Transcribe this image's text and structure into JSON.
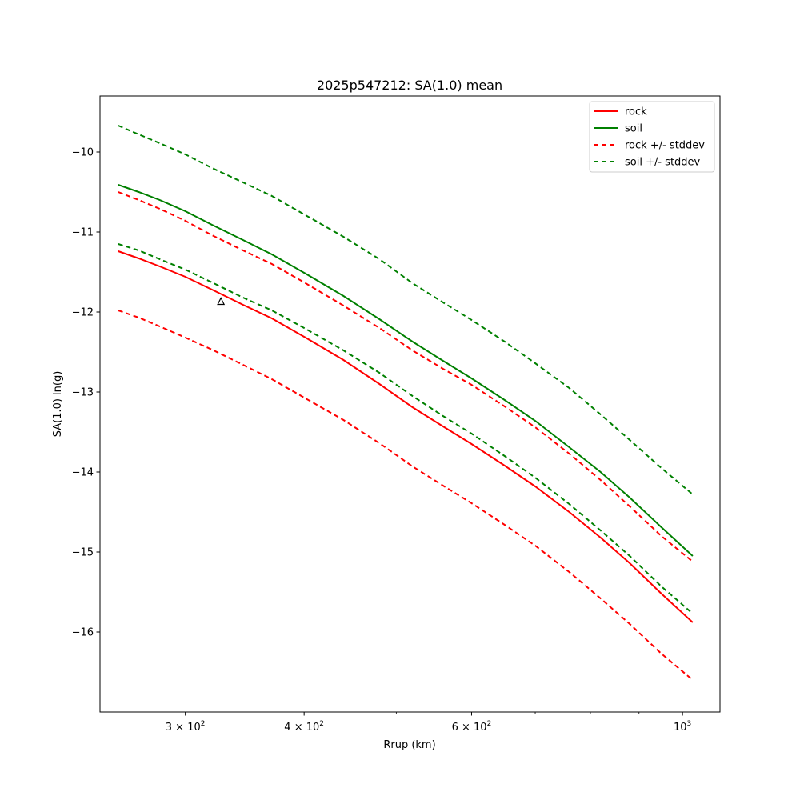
{
  "chart_data": {
    "type": "line",
    "title": "2025p547212: SA(1.0) mean",
    "xlabel": "Rrup (km)",
    "ylabel": "SA(1.0) ln(g)",
    "xscale": "log",
    "xlim": [
      244,
      1095
    ],
    "ylim": [
      -17.0,
      -9.3
    ],
    "grid": false,
    "legend_placement": "top-right",
    "x_ticks": [
      {
        "value": 300,
        "base": "3 × 10",
        "exp": "2"
      },
      {
        "value": 400,
        "base": "4 × 10",
        "exp": "2"
      },
      {
        "value": 600,
        "base": "6 × 10",
        "exp": "2"
      },
      {
        "value": 1000,
        "base": "10",
        "exp": "3"
      }
    ],
    "x_minor_ticks": [
      500,
      700,
      800,
      900
    ],
    "y_ticks": [
      {
        "value": -10,
        "label": "−10"
      },
      {
        "value": -11,
        "label": "−11"
      },
      {
        "value": -12,
        "label": "−12"
      },
      {
        "value": -13,
        "label": "−13"
      },
      {
        "value": -14,
        "label": "−14"
      },
      {
        "value": -15,
        "label": "−15"
      },
      {
        "value": -16,
        "label": "−16"
      }
    ],
    "x": [
      255,
      268,
      282,
      300,
      320,
      345,
      370,
      400,
      440,
      480,
      520,
      560,
      600,
      650,
      700,
      760,
      820,
      880,
      950,
      1025
    ],
    "series": [
      {
        "name": "rock",
        "color": "#ff0000",
        "dash": "solid",
        "values": [
          -11.24,
          -11.33,
          -11.43,
          -11.56,
          -11.72,
          -11.91,
          -12.08,
          -12.31,
          -12.6,
          -12.9,
          -13.19,
          -13.43,
          -13.65,
          -13.92,
          -14.18,
          -14.5,
          -14.82,
          -15.14,
          -15.52,
          -15.88
        ]
      },
      {
        "name": "soil",
        "color": "#008000",
        "dash": "solid",
        "values": [
          -10.41,
          -10.5,
          -10.6,
          -10.74,
          -10.91,
          -11.1,
          -11.28,
          -11.51,
          -11.8,
          -12.09,
          -12.37,
          -12.61,
          -12.83,
          -13.1,
          -13.36,
          -13.69,
          -14.0,
          -14.32,
          -14.69,
          -15.05
        ]
      },
      {
        "name": "rock +/- stddev",
        "color": "#ff0000",
        "dash": "dashed",
        "values": [
          -10.5,
          -10.6,
          -10.71,
          -10.86,
          -11.04,
          -11.23,
          -11.4,
          -11.63,
          -11.92,
          -12.2,
          -12.48,
          -12.71,
          -12.91,
          -13.18,
          -13.44,
          -13.77,
          -14.1,
          -14.43,
          -14.8,
          -15.12
        ]
      },
      {
        "name": "",
        "color": "#ff0000",
        "dash": "dashed",
        "values": [
          -11.98,
          -12.07,
          -12.18,
          -12.32,
          -12.47,
          -12.66,
          -12.84,
          -13.07,
          -13.35,
          -13.64,
          -13.93,
          -14.17,
          -14.39,
          -14.66,
          -14.92,
          -15.25,
          -15.58,
          -15.9,
          -16.27,
          -16.6
        ]
      },
      {
        "name": "soil +/- stddev",
        "color": "#008000",
        "dash": "dashed",
        "values": [
          -9.67,
          -9.78,
          -9.89,
          -10.03,
          -10.2,
          -10.38,
          -10.55,
          -10.78,
          -11.06,
          -11.34,
          -11.64,
          -11.88,
          -12.1,
          -12.37,
          -12.64,
          -12.95,
          -13.28,
          -13.6,
          -13.95,
          -14.28
        ]
      },
      {
        "name": "",
        "color": "#008000",
        "dash": "dashed",
        "values": [
          -11.15,
          -11.23,
          -11.34,
          -11.47,
          -11.63,
          -11.82,
          -11.98,
          -12.2,
          -12.48,
          -12.76,
          -13.05,
          -13.3,
          -13.52,
          -13.8,
          -14.07,
          -14.4,
          -14.73,
          -15.05,
          -15.43,
          -15.77
        ]
      }
    ],
    "observation": {
      "marker": "triangle-outline",
      "color": "#000000",
      "x": 327,
      "y": -11.87
    },
    "legend": [
      {
        "label": "rock",
        "color": "#ff0000",
        "dash": "solid"
      },
      {
        "label": "soil",
        "color": "#008000",
        "dash": "solid"
      },
      {
        "label": "rock +/- stddev",
        "color": "#ff0000",
        "dash": "dashed"
      },
      {
        "label": "soil +/- stddev",
        "color": "#008000",
        "dash": "dashed"
      }
    ]
  }
}
